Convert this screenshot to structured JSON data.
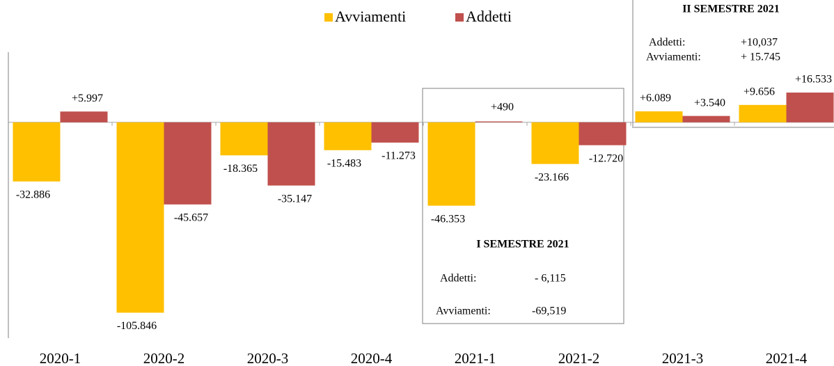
{
  "chart_data": {
    "type": "bar",
    "categories": [
      "2020-1",
      "2020-2",
      "2020-3",
      "2020-4",
      "2021-1",
      "2021-2",
      "2021-3",
      "2021-4"
    ],
    "series": [
      {
        "name": "Avviamenti",
        "color": "#FFC000",
        "values": [
          -32886,
          -105846,
          -18365,
          -15483,
          -46353,
          -23166,
          6089,
          9656
        ],
        "value_labels": [
          "-32.886",
          "-105.846",
          "-18.365",
          "-15.483",
          "-46.353",
          "-23.166",
          "+6.089",
          "+9.656"
        ]
      },
      {
        "name": "Addetti",
        "color": "#C0504D",
        "values": [
          5997,
          -45657,
          -35147,
          -11273,
          490,
          -12720,
          3540,
          16533
        ],
        "value_labels": [
          "+5.997",
          "-45.657",
          "-35.147",
          "-11.273",
          "+490",
          "-12.720",
          "+3.540",
          "+16.533"
        ]
      }
    ],
    "ylim": [
      -120000,
      68000
    ],
    "annotations": [
      {
        "title": "I SEMESTRE 2021",
        "lines": [
          [
            "Addetti:",
            "- 6,115"
          ],
          [
            "Avviamenti:",
            "-69,519"
          ]
        ]
      },
      {
        "title": "II SEMESTRE 2021",
        "lines": [
          [
            "Addetti:",
            "+10,037"
          ],
          [
            "Avviamenti:",
            "+ 15.745"
          ]
        ]
      }
    ]
  }
}
